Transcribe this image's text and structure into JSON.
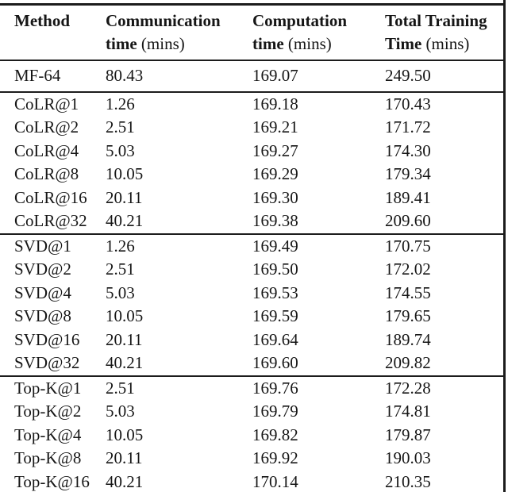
{
  "page": {
    "background_color": "#ffffff",
    "text_color": "#161616",
    "rule_color": "#1c1c1c"
  },
  "table": {
    "columns": [
      {
        "title": "Method",
        "title2": "",
        "unit": ""
      },
      {
        "title": "Communication",
        "title2": "time",
        "unit": "(mins)"
      },
      {
        "title": "Computation",
        "title2": "time",
        "unit": "(mins)"
      },
      {
        "title": "Total Training",
        "title2": "Time",
        "unit": "(mins)"
      }
    ],
    "sections": [
      {
        "name": "baseline",
        "rows": [
          [
            "MF-64",
            "80.43",
            "169.07",
            "249.50"
          ]
        ]
      },
      {
        "name": "colr",
        "rows": [
          [
            "CoLR@1",
            "1.26",
            "169.18",
            "170.43"
          ],
          [
            "CoLR@2",
            "2.51",
            "169.21",
            "171.72"
          ],
          [
            "CoLR@4",
            "5.03",
            "169.27",
            "174.30"
          ],
          [
            "CoLR@8",
            "10.05",
            "169.29",
            "179.34"
          ],
          [
            "CoLR@16",
            "20.11",
            "169.30",
            "189.41"
          ],
          [
            "CoLR@32",
            "40.21",
            "169.38",
            "209.60"
          ]
        ]
      },
      {
        "name": "svd",
        "rows": [
          [
            "SVD@1",
            "1.26",
            "169.49",
            "170.75"
          ],
          [
            "SVD@2",
            "2.51",
            "169.50",
            "172.02"
          ],
          [
            "SVD@4",
            "5.03",
            "169.53",
            "174.55"
          ],
          [
            "SVD@8",
            "10.05",
            "169.59",
            "179.65"
          ],
          [
            "SVD@16",
            "20.11",
            "169.64",
            "189.74"
          ],
          [
            "SVD@32",
            "40.21",
            "169.60",
            "209.82"
          ]
        ]
      },
      {
        "name": "topk",
        "rows": [
          [
            "Top-K@1",
            "2.51",
            "169.76",
            "172.28"
          ],
          [
            "Top-K@2",
            "5.03",
            "169.79",
            "174.81"
          ],
          [
            "Top-K@4",
            "10.05",
            "169.82",
            "179.87"
          ],
          [
            "Top-K@8",
            "20.11",
            "169.92",
            "190.03"
          ],
          [
            "Top-K@16",
            "40.21",
            "170.14",
            "210.35"
          ]
        ]
      }
    ],
    "cell_names": [
      "cell-method",
      "cell-communication-time",
      "cell-computation-time",
      "cell-total-training-time"
    ]
  }
}
